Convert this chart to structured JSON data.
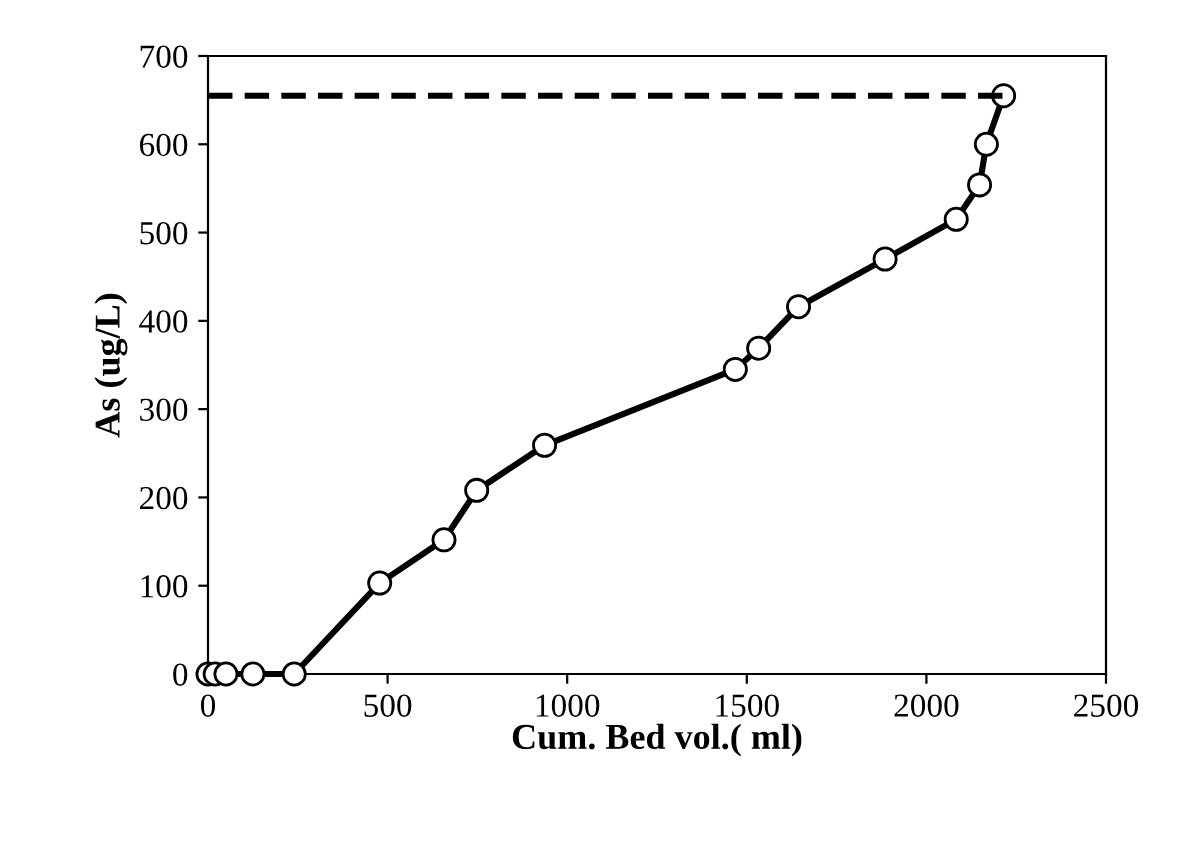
{
  "chart_data": {
    "type": "line",
    "xlabel": "Cum. Bed vol.( ml)",
    "ylabel": "As (ug/L)",
    "xlim": [
      0,
      2500
    ],
    "ylim": [
      0,
      700
    ],
    "xticks": [
      0,
      500,
      1000,
      1500,
      2000,
      2500
    ],
    "yticks": [
      0,
      100,
      200,
      300,
      400,
      500,
      600,
      700
    ],
    "grid": false,
    "legend": false,
    "series": [
      {
        "color": "#000000",
        "marker": "circle",
        "line_style": "solid",
        "x": [
          0,
          20,
          50,
          125,
          240,
          478,
          657,
          748,
          937,
          1468,
          1533,
          1644,
          1885,
          2083,
          2148,
          2167,
          2215
        ],
        "values": [
          0,
          0,
          0,
          0,
          0,
          103,
          152,
          208,
          259,
          345,
          369,
          416,
          470,
          515,
          554,
          600,
          655
        ]
      },
      {
        "color": "#000000",
        "marker": "none",
        "line_style": "dashed",
        "x": [
          0,
          2215
        ],
        "values": [
          655,
          655
        ]
      }
    ]
  }
}
